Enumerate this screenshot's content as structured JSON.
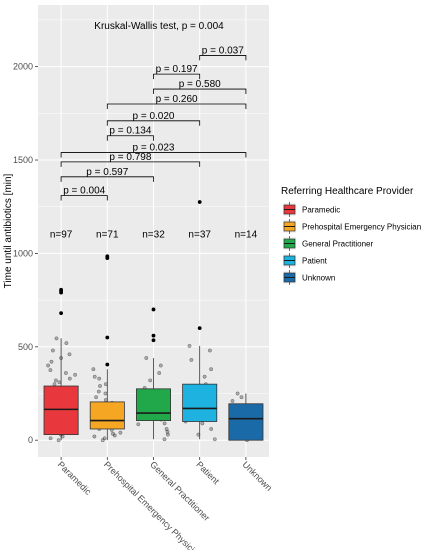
{
  "chart_data": {
    "type": "box",
    "title": "Kruskal-Wallis test, p = 0.004",
    "ylabel": "Time until antibiotics [min]",
    "xlabel": "",
    "ylim": [
      -90,
      2330
    ],
    "yticks": [
      0,
      500,
      1000,
      1500,
      2000
    ],
    "ytick_labels": [
      "0",
      "500",
      "1000",
      "1500",
      "2000"
    ],
    "grid": true,
    "categories": [
      "Paramedic",
      "Prehospital Emergency Physician",
      "General Practitioner",
      "Patient",
      "Unknown"
    ],
    "colors": [
      "#e8383d",
      "#f5a623",
      "#21a84a",
      "#1db2e0",
      "#1a6aa8"
    ],
    "counts": [
      "n=97",
      "n=71",
      "n=32",
      "n=37",
      "n=14"
    ],
    "counts_y": 1100,
    "boxes": [
      {
        "q1": 30,
        "median": 165,
        "q3": 290,
        "whisker_low": 0,
        "whisker_high": 545,
        "outliers": [
          680,
          790,
          800,
          805
        ]
      },
      {
        "q1": 60,
        "median": 105,
        "q3": 205,
        "whisker_low": 0,
        "whisker_high": 380,
        "outliers": [
          405,
          550,
          975,
          985
        ]
      },
      {
        "q1": 105,
        "median": 145,
        "q3": 275,
        "whisker_low": 5,
        "whisker_high": 440,
        "outliers": [
          535,
          560,
          700
        ]
      },
      {
        "q1": 100,
        "median": 170,
        "q3": 300,
        "whisker_low": 5,
        "whisker_high": 505,
        "outliers": [
          600,
          1275
        ]
      },
      {
        "q1": 0,
        "median": 115,
        "q3": 195,
        "whisker_low": 0,
        "whisker_high": 250,
        "outliers": []
      }
    ],
    "jitter_points": [
      [
        30,
        60,
        90,
        120,
        150,
        170,
        200,
        220,
        250,
        280,
        300,
        330,
        360,
        400,
        440,
        480,
        520,
        10,
        45,
        75,
        110,
        140,
        185,
        230,
        265,
        310,
        350,
        420,
        0,
        20,
        55,
        95,
        130,
        160,
        210,
        245,
        275,
        320,
        375,
        460,
        545
      ],
      [
        0,
        20,
        40,
        60,
        80,
        95,
        110,
        130,
        150,
        175,
        200,
        230,
        260,
        300,
        340,
        380,
        10,
        35,
        55,
        75,
        100,
        120,
        140,
        165,
        190,
        215,
        250,
        290,
        330,
        25,
        70,
        125,
        180
      ],
      [
        5,
        30,
        60,
        90,
        110,
        130,
        150,
        170,
        200,
        240,
        280,
        320,
        360,
        400,
        440,
        45,
        85,
        120,
        160,
        190,
        260
      ],
      [
        5,
        30,
        60,
        90,
        110,
        130,
        150,
        170,
        190,
        210,
        240,
        270,
        300,
        340,
        380,
        430,
        480,
        505,
        100,
        140,
        230
      ],
      [
        0,
        10,
        40,
        70,
        100,
        120,
        150,
        180,
        210,
        230,
        250
      ]
    ],
    "comparisons": [
      {
        "from": 0,
        "to": 1,
        "y": 1310,
        "label": "p = 0.004"
      },
      {
        "from": 0,
        "to": 2,
        "y": 1410,
        "label": "p = 0.597"
      },
      {
        "from": 0,
        "to": 3,
        "y": 1490,
        "label": "p = 0.798"
      },
      {
        "from": 0,
        "to": 4,
        "y": 1540,
        "label": "p = 0.023"
      },
      {
        "from": 1,
        "to": 2,
        "y": 1630,
        "label": "p = 0.134"
      },
      {
        "from": 1,
        "to": 3,
        "y": 1710,
        "label": "p = 0.020"
      },
      {
        "from": 1,
        "to": 4,
        "y": 1800,
        "label": "p = 0.260"
      },
      {
        "from": 2,
        "to": 4,
        "y": 1880,
        "label": "p = 0.580"
      },
      {
        "from": 2,
        "to": 3,
        "y": 1960,
        "label": "p = 0.197"
      },
      {
        "from": 3,
        "to": 4,
        "y": 2060,
        "label": "p = 0.037"
      }
    ],
    "legend": {
      "title": "Referring Healthcare Provider",
      "placement": "right",
      "entries": [
        "Paramedic",
        "Prehospital Emergency Physician",
        "General Practitioner",
        "Patient",
        "Unknown"
      ]
    }
  }
}
